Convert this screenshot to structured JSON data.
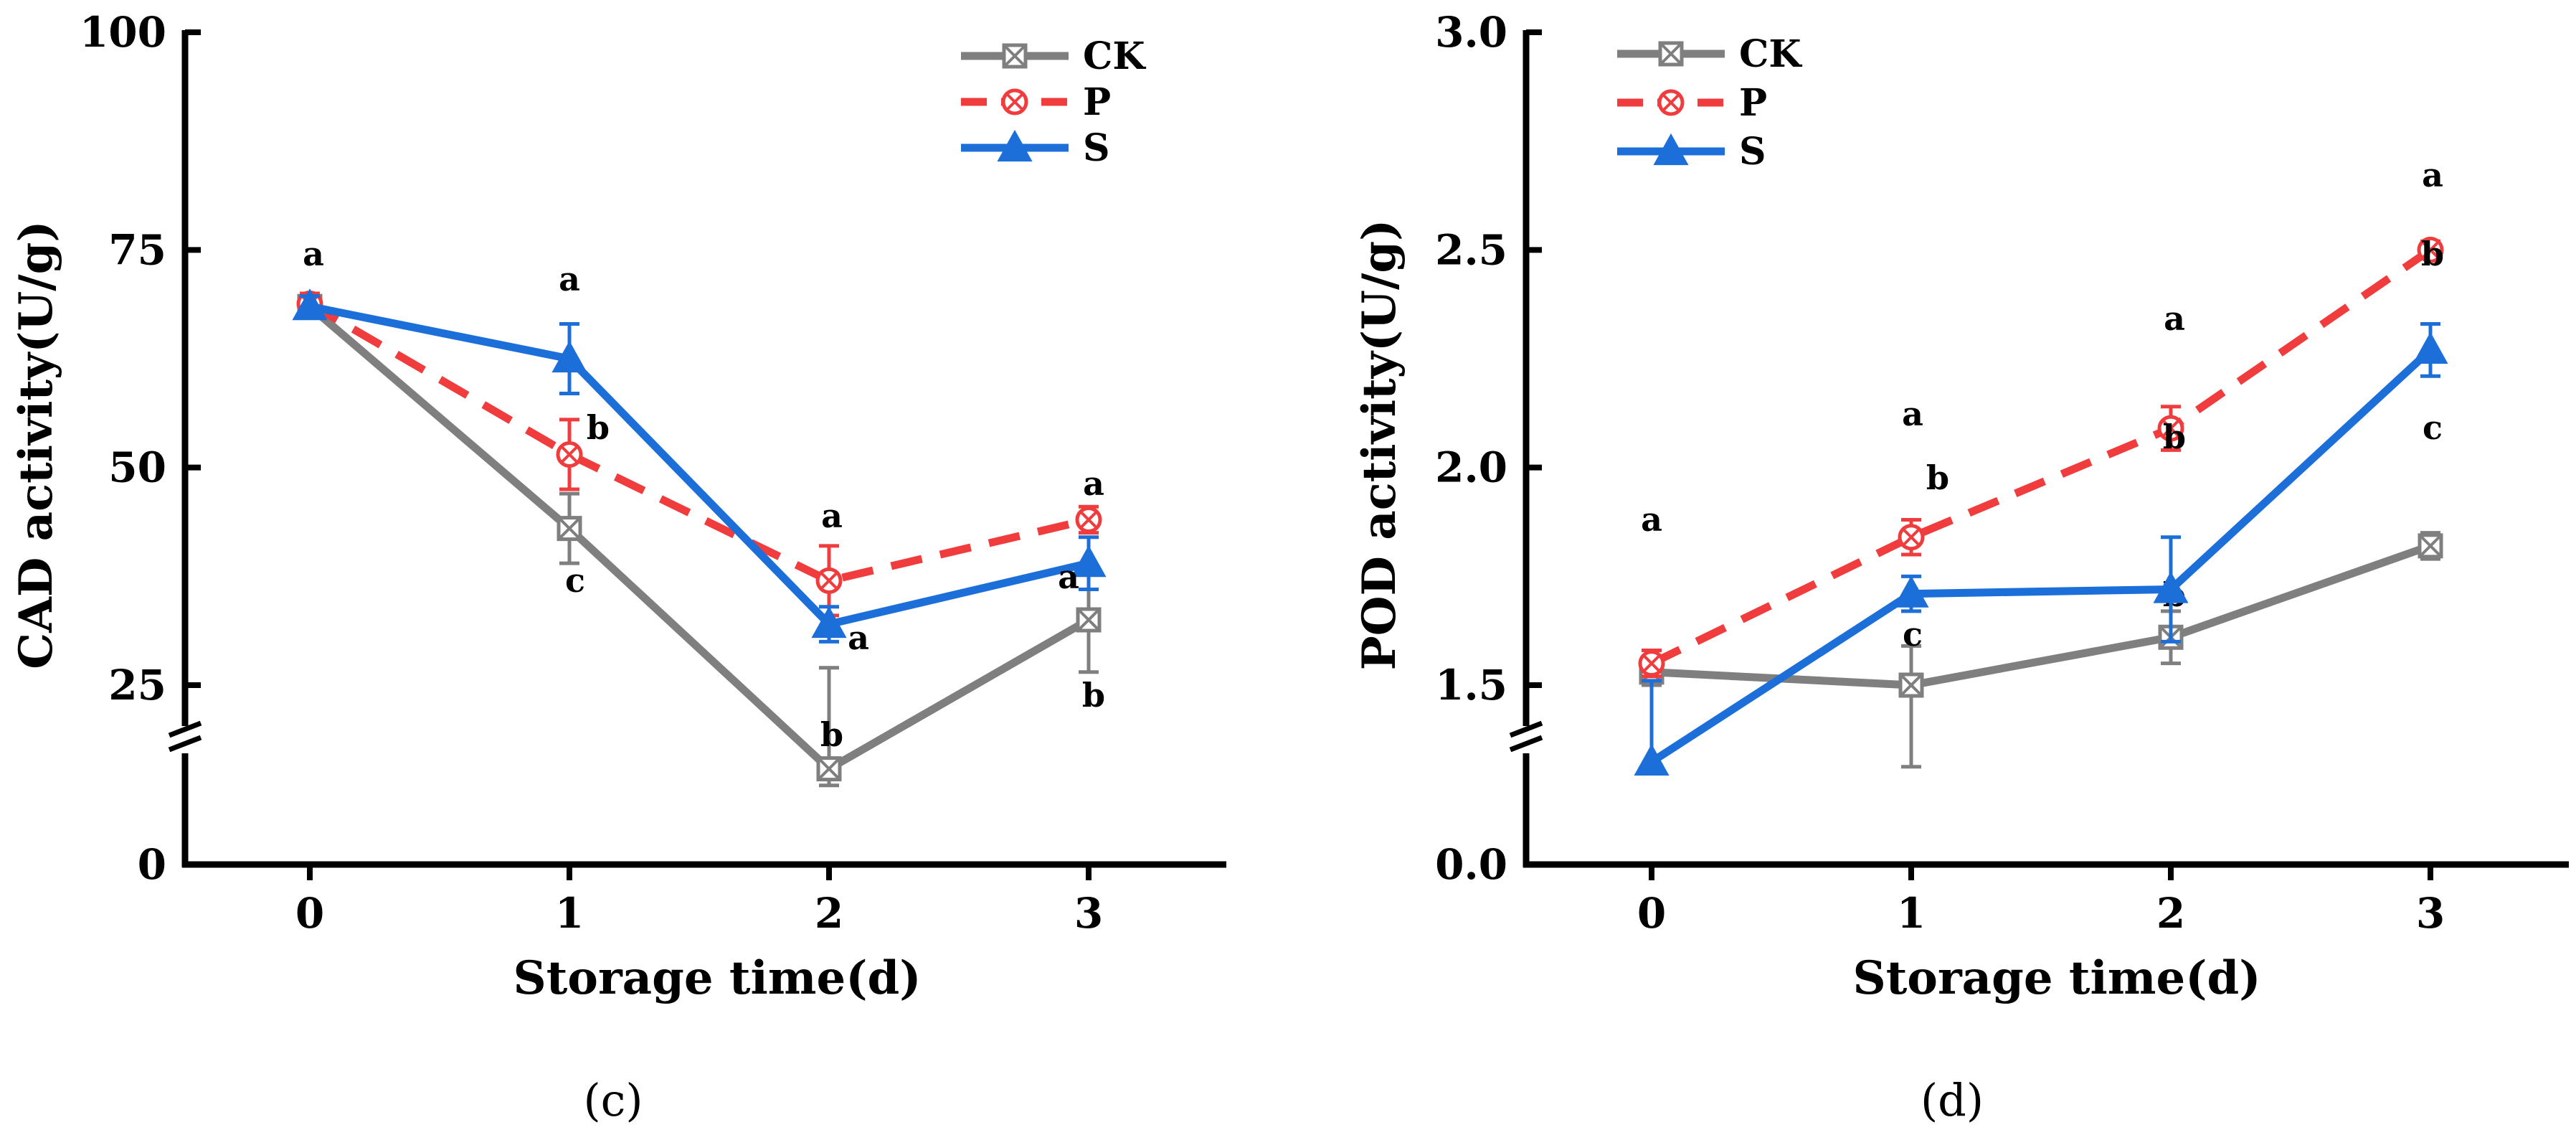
{
  "colors": {
    "CK": "#7f7f7f",
    "P": "#f03c3c",
    "S": "#1c6fd8",
    "axis": "#000000"
  },
  "chart_data": [
    {
      "type": "line",
      "panel_label": "(c)",
      "xlabel": "Storage time(d)",
      "ylabel": "CAD activity(U/g)",
      "x": [
        0,
        1,
        2,
        3
      ],
      "x_ticks": [
        "0",
        "1",
        "2",
        "3"
      ],
      "y_ticks": [
        "0",
        "25",
        "50",
        "75",
        "100"
      ],
      "y_break": {
        "low": [
          0,
          25
        ],
        "high": [
          25,
          100
        ]
      },
      "legend": {
        "position": "top-right",
        "entries": [
          "CK",
          "P",
          "S"
        ]
      },
      "series": [
        {
          "name": "CK",
          "marker": "boxed-x",
          "dash": "solid",
          "values": [
            68.5,
            43,
            23,
            32.5
          ],
          "errors": [
            1.2,
            4,
            4,
            6
          ],
          "letters": [
            "",
            "c",
            "b",
            "b"
          ]
        },
        {
          "name": "P",
          "marker": "circled-x",
          "dash": "dashed",
          "values": [
            68.8,
            51.5,
            37,
            44
          ],
          "errors": [
            1.2,
            4,
            4,
            1.5
          ],
          "letters": [
            "a",
            "b",
            "a",
            "a"
          ]
        },
        {
          "name": "S",
          "marker": "triangle",
          "dash": "solid",
          "values": [
            68.5,
            62.5,
            32,
            39
          ],
          "errors": [
            1.2,
            4,
            2,
            3
          ],
          "letters": [
            "",
            "a",
            "a",
            "a"
          ]
        }
      ]
    },
    {
      "type": "line",
      "panel_label": "(d)",
      "xlabel": "Storage time(d)",
      "ylabel": "POD activity(U/g)",
      "x": [
        0,
        1,
        2,
        3
      ],
      "x_ticks": [
        "0",
        "1",
        "2",
        "3"
      ],
      "y_ticks": [
        "0.0",
        "1.5",
        "2.0",
        "2.5",
        "3.0"
      ],
      "y_break": {
        "low": [
          0,
          1.5
        ],
        "high": [
          1.5,
          3.0
        ]
      },
      "legend": {
        "position": "top-left",
        "entries": [
          "CK",
          "P",
          "S"
        ]
      },
      "series": [
        {
          "name": "CK",
          "marker": "boxed-x",
          "dash": "solid",
          "values": [
            1.53,
            1.5,
            1.61,
            1.82
          ],
          "errors": [
            0.03,
            0.09,
            0.06,
            0.03
          ],
          "letters": [
            "",
            "c",
            "b",
            "c"
          ]
        },
        {
          "name": "P",
          "marker": "circled-x",
          "dash": "dashed",
          "values": [
            1.55,
            1.84,
            2.09,
            2.5
          ],
          "errors": [
            0.03,
            0.04,
            0.05,
            0.02
          ],
          "letters": [
            "a",
            "a",
            "a",
            "a"
          ]
        },
        {
          "name": "S",
          "marker": "triangle",
          "dash": "solid",
          "values": [
            1.48,
            1.71,
            1.72,
            2.27
          ],
          "errors": [
            0.03,
            0.04,
            0.12,
            0.06
          ],
          "letters": [
            "",
            "b",
            "b",
            "b"
          ]
        }
      ]
    }
  ]
}
